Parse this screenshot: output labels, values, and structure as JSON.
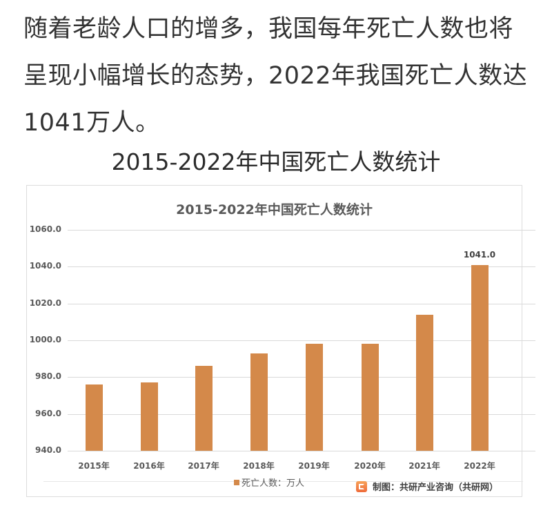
{
  "article": {
    "paragraph": "随着老龄人口的增多，我国每年死亡人数也将呈现小幅增长的态势，2022年我国死亡人数达1041万人。",
    "chart_heading": "2015-2022年中国死亡人数统计"
  },
  "chart": {
    "title": "2015-2022年中国死亡人数统计",
    "yticks": [
      "1060.0",
      "1040.0",
      "1020.0",
      "1000.0",
      "980.0",
      "960.0",
      "940.0"
    ],
    "xticks": [
      "2015年",
      "2016年",
      "2017年",
      "2018年",
      "2019年",
      "2020年",
      "2021年",
      "2022年"
    ],
    "data_label_2022": "1041.0",
    "legend_label": "死亡人数：万人",
    "source_label": "制图：共研产业咨询（共研网）",
    "bar_color": "#d4894a"
  },
  "chart_data": {
    "type": "bar",
    "title": "2015-2022年中国死亡人数统计",
    "xlabel": "",
    "ylabel": "",
    "categories": [
      "2015年",
      "2016年",
      "2017年",
      "2018年",
      "2019年",
      "2020年",
      "2021年",
      "2022年"
    ],
    "series": [
      {
        "name": "死亡人数：万人",
        "values": [
          976,
          977,
          986,
          993,
          998,
          998,
          1014,
          1041
        ]
      }
    ],
    "data_labels": {
      "2022年": "1041.0"
    },
    "ylim": [
      940,
      1060
    ],
    "ytick_step": 20,
    "grid": true,
    "legend_position": "bottom",
    "annotation": "制图：共研产业咨询（共研网）"
  }
}
